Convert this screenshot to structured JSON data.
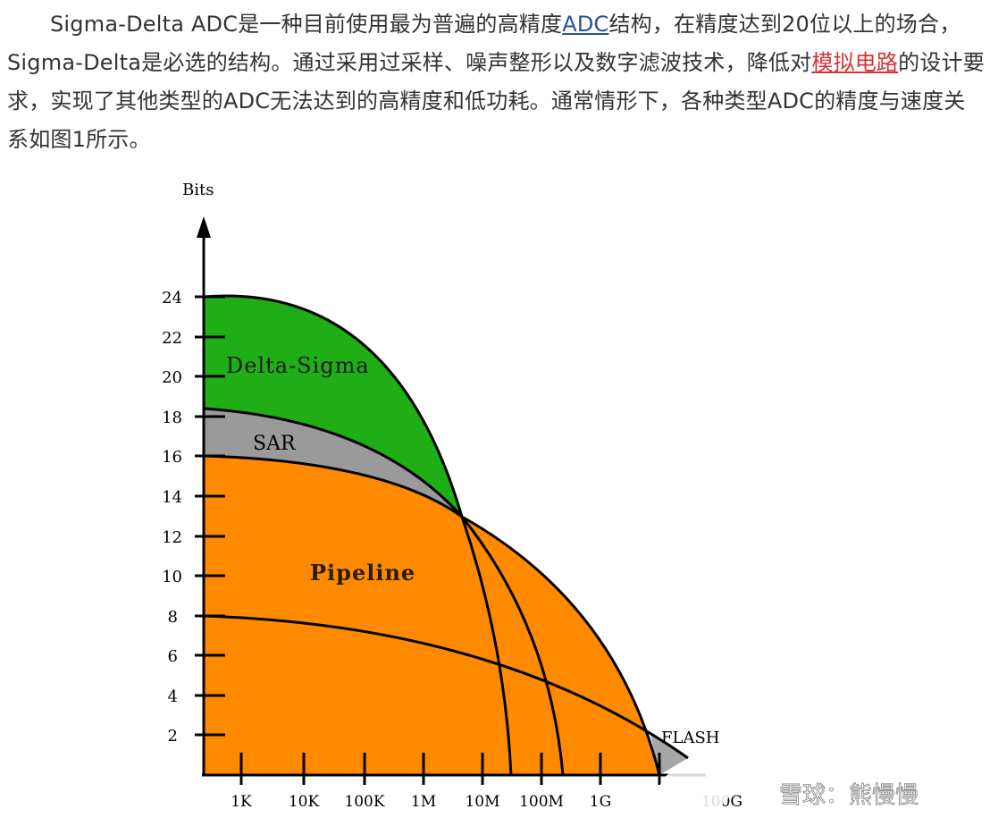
{
  "article": {
    "before_link": "Sigma-Delta ADC是一种目前使用最为普遍的高精度",
    "link_text": "ADC",
    "after_link": "结构，在精度达到20位以上的场合，Sigma-Delta是必选的结构。通过采用过采样、噪声整形以及数字滤波技术，降低对",
    "highlight_text": "模拟电路",
    "after_highlight": "的设计要求，实现了其他类型的ADC无法达到的高精度和低功耗。通常情形下，各种类型ADC的精度与速度关系如图1所示。"
  },
  "diagram": {
    "y_axis_label": "Bits",
    "y_ticks": [
      "24",
      "22",
      "20",
      "18",
      "16",
      "14",
      "12",
      "10",
      "8",
      "6",
      "4",
      "2"
    ],
    "x_ticks": [
      "1K",
      "10K",
      "100K",
      "1M",
      "10M",
      "100M",
      "1G",
      "",
      "100G"
    ],
    "regions": [
      {
        "name": "Delta-Sigma",
        "color": "#1fae16"
      },
      {
        "name": "SAR",
        "color": "#9a9a9a"
      },
      {
        "name": "Pipeline",
        "color": "#ff8a00"
      },
      {
        "name": "FLASH",
        "color": "#a7a7a7"
      }
    ],
    "watermark": "雪球：熊慢慢"
  }
}
